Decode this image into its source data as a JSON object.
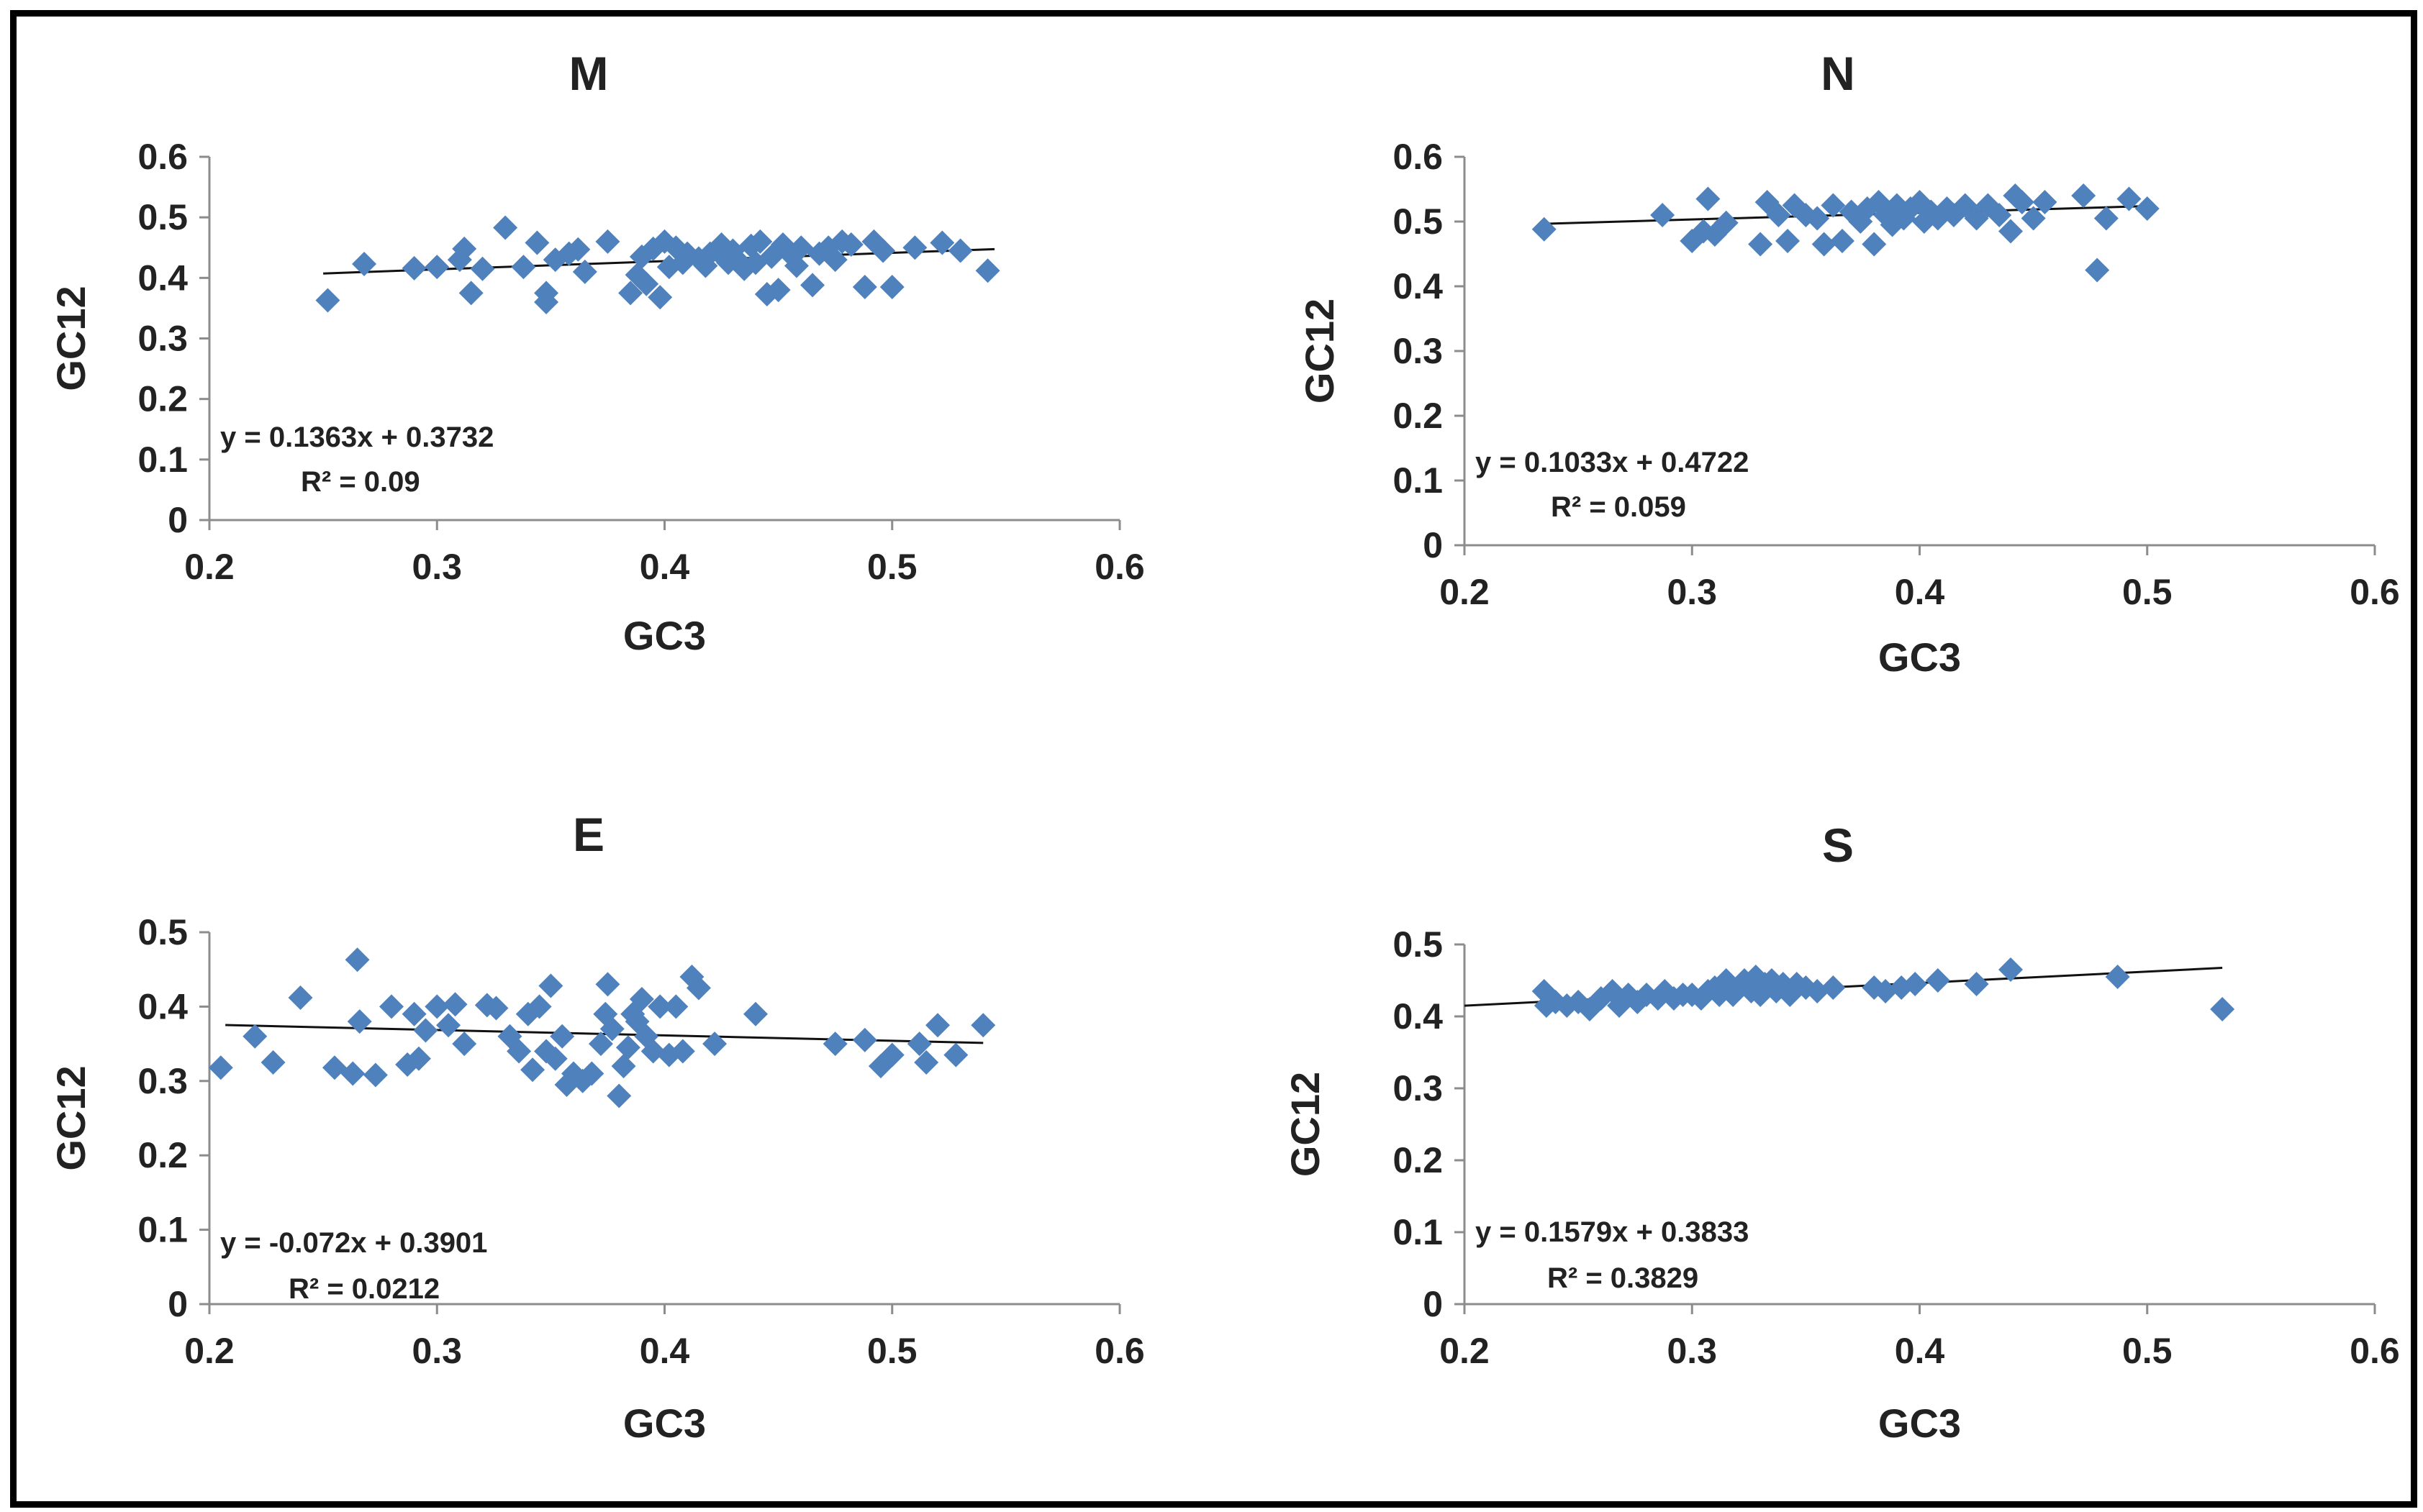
{
  "chart_data": [
    {
      "type": "scatter",
      "title": "M",
      "xlabel": "GC3",
      "ylabel": "GC12",
      "xlim": [
        0.2,
        0.6
      ],
      "ylim": [
        0,
        0.6
      ],
      "xticks": [
        "0.2",
        "0.3",
        "0.4",
        "0.5",
        "0.6"
      ],
      "yticks": [
        "0",
        "0.1",
        "0.2",
        "0.3",
        "0.4",
        "0.5",
        "0.6"
      ],
      "grid": false,
      "marker": "diamond",
      "color": "#4F81BD",
      "trendline": {
        "slope": 0.1363,
        "intercept": 0.3732,
        "x_range": [
          0.25,
          0.545
        ]
      },
      "equation": "y = 0.1363x + 0.3732",
      "r2": "R² = 0.09",
      "points": [
        [
          0.252,
          0.363
        ],
        [
          0.268,
          0.423
        ],
        [
          0.29,
          0.416
        ],
        [
          0.3,
          0.418
        ],
        [
          0.31,
          0.43
        ],
        [
          0.312,
          0.448
        ],
        [
          0.315,
          0.375
        ],
        [
          0.32,
          0.415
        ],
        [
          0.33,
          0.483
        ],
        [
          0.338,
          0.418
        ],
        [
          0.344,
          0.458
        ],
        [
          0.348,
          0.375
        ],
        [
          0.348,
          0.36
        ],
        [
          0.352,
          0.43
        ],
        [
          0.358,
          0.44
        ],
        [
          0.362,
          0.447
        ],
        [
          0.365,
          0.41
        ],
        [
          0.375,
          0.46
        ],
        [
          0.385,
          0.375
        ],
        [
          0.388,
          0.405
        ],
        [
          0.39,
          0.435
        ],
        [
          0.392,
          0.39
        ],
        [
          0.395,
          0.448
        ],
        [
          0.398,
          0.368
        ],
        [
          0.4,
          0.46
        ],
        [
          0.402,
          0.418
        ],
        [
          0.405,
          0.45
        ],
        [
          0.408,
          0.425
        ],
        [
          0.41,
          0.44
        ],
        [
          0.415,
          0.432
        ],
        [
          0.418,
          0.42
        ],
        [
          0.42,
          0.44
        ],
        [
          0.423,
          0.445
        ],
        [
          0.425,
          0.455
        ],
        [
          0.428,
          0.425
        ],
        [
          0.43,
          0.445
        ],
        [
          0.432,
          0.43
        ],
        [
          0.435,
          0.415
        ],
        [
          0.438,
          0.453
        ],
        [
          0.44,
          0.425
        ],
        [
          0.442,
          0.46
        ],
        [
          0.445,
          0.373
        ],
        [
          0.447,
          0.435
        ],
        [
          0.45,
          0.38
        ],
        [
          0.452,
          0.455
        ],
        [
          0.455,
          0.44
        ],
        [
          0.458,
          0.42
        ],
        [
          0.46,
          0.45
        ],
        [
          0.465,
          0.388
        ],
        [
          0.468,
          0.44
        ],
        [
          0.472,
          0.45
        ],
        [
          0.475,
          0.43
        ],
        [
          0.478,
          0.46
        ],
        [
          0.482,
          0.455
        ],
        [
          0.488,
          0.385
        ],
        [
          0.492,
          0.46
        ],
        [
          0.496,
          0.445
        ],
        [
          0.5,
          0.385
        ],
        [
          0.51,
          0.45
        ],
        [
          0.522,
          0.458
        ],
        [
          0.53,
          0.445
        ],
        [
          0.542,
          0.412
        ]
      ]
    },
    {
      "type": "scatter",
      "title": "N",
      "xlabel": "GC3",
      "ylabel": "GC12",
      "xlim": [
        0.2,
        0.6
      ],
      "ylim": [
        0,
        0.6
      ],
      "xticks": [
        "0.2",
        "0.3",
        "0.4",
        "0.5",
        "0.6"
      ],
      "yticks": [
        "0",
        "0.1",
        "0.2",
        "0.3",
        "0.4",
        "0.5",
        "0.6"
      ],
      "grid": false,
      "marker": "diamond",
      "color": "#4F81BD",
      "trendline": {
        "slope": 0.1033,
        "intercept": 0.4722,
        "x_range": [
          0.235,
          0.5
        ]
      },
      "equation": "y = 0.1033x + 0.4722",
      "r2": "R² = 0.059",
      "points": [
        [
          0.235,
          0.488
        ],
        [
          0.287,
          0.51
        ],
        [
          0.3,
          0.47
        ],
        [
          0.305,
          0.485
        ],
        [
          0.307,
          0.535
        ],
        [
          0.31,
          0.48
        ],
        [
          0.315,
          0.498
        ],
        [
          0.33,
          0.465
        ],
        [
          0.333,
          0.53
        ],
        [
          0.338,
          0.51
        ],
        [
          0.342,
          0.47
        ],
        [
          0.345,
          0.525
        ],
        [
          0.35,
          0.51
        ],
        [
          0.355,
          0.505
        ],
        [
          0.358,
          0.465
        ],
        [
          0.362,
          0.525
        ],
        [
          0.366,
          0.47
        ],
        [
          0.37,
          0.515
        ],
        [
          0.374,
          0.5
        ],
        [
          0.377,
          0.52
        ],
        [
          0.38,
          0.465
        ],
        [
          0.382,
          0.53
        ],
        [
          0.385,
          0.51
        ],
        [
          0.388,
          0.495
        ],
        [
          0.39,
          0.525
        ],
        [
          0.393,
          0.505
        ],
        [
          0.396,
          0.52
        ],
        [
          0.4,
          0.53
        ],
        [
          0.402,
          0.5
        ],
        [
          0.405,
          0.515
        ],
        [
          0.408,
          0.505
        ],
        [
          0.412,
          0.52
        ],
        [
          0.415,
          0.51
        ],
        [
          0.42,
          0.525
        ],
        [
          0.425,
          0.505
        ],
        [
          0.43,
          0.525
        ],
        [
          0.435,
          0.51
        ],
        [
          0.44,
          0.485
        ],
        [
          0.442,
          0.54
        ],
        [
          0.445,
          0.53
        ],
        [
          0.45,
          0.505
        ],
        [
          0.455,
          0.53
        ],
        [
          0.472,
          0.54
        ],
        [
          0.478,
          0.425
        ],
        [
          0.482,
          0.505
        ],
        [
          0.492,
          0.535
        ],
        [
          0.5,
          0.52
        ]
      ]
    },
    {
      "type": "scatter",
      "title": "E",
      "xlabel": "GC3",
      "ylabel": "GC12",
      "xlim": [
        0.2,
        0.6
      ],
      "ylim": [
        0,
        0.5
      ],
      "xticks": [
        "0.2",
        "0.3",
        "0.4",
        "0.5",
        "0.6"
      ],
      "yticks": [
        "0",
        "0.1",
        "0.2",
        "0.3",
        "0.4",
        "0.5"
      ],
      "grid": false,
      "marker": "diamond",
      "color": "#4F81BD",
      "trendline": {
        "slope": -0.072,
        "intercept": 0.3901,
        "x_range": [
          0.207,
          0.54
        ]
      },
      "equation": "y = -0.072x + 0.3901",
      "r2": "R² = 0.0212",
      "points": [
        [
          0.205,
          0.318
        ],
        [
          0.22,
          0.36
        ],
        [
          0.228,
          0.325
        ],
        [
          0.24,
          0.412
        ],
        [
          0.255,
          0.318
        ],
        [
          0.263,
          0.31
        ],
        [
          0.265,
          0.463
        ],
        [
          0.266,
          0.38
        ],
        [
          0.273,
          0.308
        ],
        [
          0.28,
          0.4
        ],
        [
          0.287,
          0.322
        ],
        [
          0.29,
          0.39
        ],
        [
          0.292,
          0.33
        ],
        [
          0.295,
          0.368
        ],
        [
          0.3,
          0.4
        ],
        [
          0.305,
          0.375
        ],
        [
          0.308,
          0.403
        ],
        [
          0.312,
          0.35
        ],
        [
          0.322,
          0.402
        ],
        [
          0.326,
          0.398
        ],
        [
          0.332,
          0.36
        ],
        [
          0.336,
          0.34
        ],
        [
          0.34,
          0.39
        ],
        [
          0.342,
          0.315
        ],
        [
          0.345,
          0.4
        ],
        [
          0.348,
          0.34
        ],
        [
          0.35,
          0.428
        ],
        [
          0.352,
          0.33
        ],
        [
          0.355,
          0.36
        ],
        [
          0.357,
          0.295
        ],
        [
          0.36,
          0.31
        ],
        [
          0.364,
          0.3
        ],
        [
          0.368,
          0.31
        ],
        [
          0.372,
          0.35
        ],
        [
          0.374,
          0.39
        ],
        [
          0.375,
          0.43
        ],
        [
          0.377,
          0.37
        ],
        [
          0.38,
          0.28
        ],
        [
          0.382,
          0.32
        ],
        [
          0.384,
          0.345
        ],
        [
          0.386,
          0.39
        ],
        [
          0.388,
          0.38
        ],
        [
          0.39,
          0.41
        ],
        [
          0.392,
          0.36
        ],
        [
          0.395,
          0.34
        ],
        [
          0.398,
          0.4
        ],
        [
          0.402,
          0.335
        ],
        [
          0.405,
          0.4
        ],
        [
          0.408,
          0.34
        ],
        [
          0.412,
          0.44
        ],
        [
          0.415,
          0.425
        ],
        [
          0.422,
          0.35
        ],
        [
          0.44,
          0.39
        ],
        [
          0.475,
          0.35
        ],
        [
          0.488,
          0.355
        ],
        [
          0.495,
          0.32
        ],
        [
          0.5,
          0.335
        ],
        [
          0.512,
          0.35
        ],
        [
          0.515,
          0.325
        ],
        [
          0.52,
          0.375
        ],
        [
          0.528,
          0.335
        ],
        [
          0.54,
          0.375
        ]
      ]
    },
    {
      "type": "scatter",
      "title": "S",
      "xlabel": "GC3",
      "ylabel": "GC12",
      "xlim": [
        0.2,
        0.6
      ],
      "ylim": [
        0,
        0.5
      ],
      "xticks": [
        "0.2",
        "0.3",
        "0.4",
        "0.5",
        "0.6"
      ],
      "yticks": [
        "0",
        "0.1",
        "0.2",
        "0.3",
        "0.4",
        "0.5"
      ],
      "grid": false,
      "marker": "diamond",
      "color": "#4F81BD",
      "trendline": {
        "slope": 0.1579,
        "intercept": 0.3833,
        "x_range": [
          0.2,
          0.533
        ]
      },
      "equation": "y = 0.1579x + 0.3833",
      "r2": "R² = 0.3829",
      "points": [
        [
          0.235,
          0.435
        ],
        [
          0.236,
          0.415
        ],
        [
          0.24,
          0.42
        ],
        [
          0.245,
          0.415
        ],
        [
          0.25,
          0.42
        ],
        [
          0.255,
          0.41
        ],
        [
          0.26,
          0.425
        ],
        [
          0.265,
          0.435
        ],
        [
          0.268,
          0.415
        ],
        [
          0.272,
          0.43
        ],
        [
          0.276,
          0.42
        ],
        [
          0.28,
          0.43
        ],
        [
          0.285,
          0.425
        ],
        [
          0.288,
          0.435
        ],
        [
          0.292,
          0.425
        ],
        [
          0.296,
          0.43
        ],
        [
          0.3,
          0.43
        ],
        [
          0.304,
          0.425
        ],
        [
          0.307,
          0.435
        ],
        [
          0.31,
          0.44
        ],
        [
          0.312,
          0.43
        ],
        [
          0.315,
          0.45
        ],
        [
          0.318,
          0.43
        ],
        [
          0.32,
          0.44
        ],
        [
          0.323,
          0.45
        ],
        [
          0.326,
          0.435
        ],
        [
          0.328,
          0.455
        ],
        [
          0.33,
          0.43
        ],
        [
          0.332,
          0.445
        ],
        [
          0.335,
          0.45
        ],
        [
          0.337,
          0.435
        ],
        [
          0.34,
          0.445
        ],
        [
          0.343,
          0.43
        ],
        [
          0.346,
          0.445
        ],
        [
          0.35,
          0.44
        ],
        [
          0.355,
          0.435
        ],
        [
          0.362,
          0.44
        ],
        [
          0.38,
          0.44
        ],
        [
          0.385,
          0.435
        ],
        [
          0.392,
          0.44
        ],
        [
          0.398,
          0.445
        ],
        [
          0.408,
          0.45
        ],
        [
          0.425,
          0.445
        ],
        [
          0.44,
          0.465
        ],
        [
          0.487,
          0.455
        ],
        [
          0.533,
          0.41
        ]
      ]
    }
  ]
}
